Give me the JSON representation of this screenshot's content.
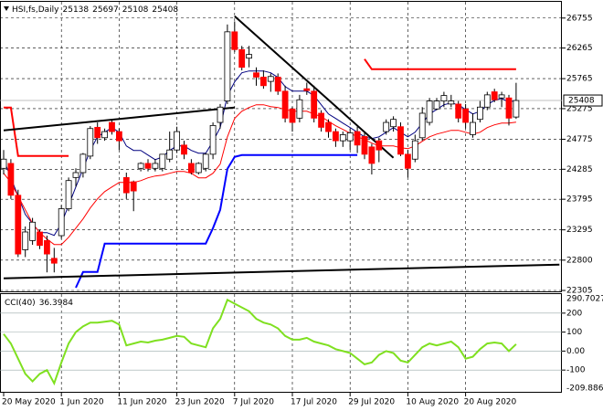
{
  "chart_data": {
    "type": "candlestick",
    "title": "HSI,fs,Daily",
    "categories": [
      "20 May 2020",
      null,
      null,
      null,
      null,
      null,
      null,
      null,
      "1 Jun 2020",
      null,
      null,
      null,
      null,
      null,
      null,
      null,
      "11 Jun 2020",
      null,
      null,
      null,
      null,
      null,
      null,
      null,
      "23 Jun 2020",
      null,
      null,
      null,
      null,
      null,
      null,
      null,
      "7 Jul 2020",
      null,
      null,
      null,
      null,
      null,
      null,
      null,
      "17 Jul 2020",
      null,
      null,
      null,
      null,
      null,
      null,
      null,
      "29 Jul 2020",
      null,
      null,
      null,
      null,
      null,
      null,
      null,
      "10 Aug 2020",
      null,
      null,
      null,
      null,
      null,
      null,
      null,
      "20 Aug 2020",
      null,
      null,
      null,
      null,
      null,
      null,
      null
    ],
    "candles": [
      [
        24300,
        24600,
        24200,
        24450
      ],
      [
        24380,
        24450,
        23800,
        23860
      ],
      [
        23860,
        23950,
        22850,
        22900
      ],
      [
        22970,
        23350,
        22850,
        23260
      ],
      [
        23120,
        23490,
        23050,
        23420
      ],
      [
        23260,
        23300,
        22980,
        23040
      ],
      [
        23120,
        23200,
        22600,
        22900
      ],
      [
        22830,
        23000,
        22600,
        22750
      ],
      [
        23200,
        23700,
        23150,
        23640
      ],
      [
        23640,
        24150,
        23600,
        24100
      ],
      [
        24150,
        24300,
        24000,
        24230
      ],
      [
        24230,
        24550,
        24150,
        24530
      ],
      [
        24500,
        24990,
        24450,
        24950
      ],
      [
        24970,
        25050,
        24700,
        24800
      ],
      [
        24800,
        24950,
        24750,
        24900
      ],
      [
        25050,
        25100,
        24850,
        24900
      ],
      [
        24900,
        24950,
        24600,
        24750
      ],
      [
        24150,
        24230,
        23800,
        23900
      ],
      [
        24080,
        24100,
        23600,
        23930
      ],
      [
        24300,
        24400,
        24250,
        24380
      ],
      [
        24380,
        24450,
        24250,
        24300
      ],
      [
        24300,
        24450,
        24250,
        24380
      ],
      [
        24300,
        24500,
        24250,
        24530
      ],
      [
        24450,
        24900,
        24400,
        24600
      ],
      [
        24600,
        24980,
        24550,
        24900
      ],
      [
        24680,
        24750,
        24450,
        24530
      ],
      [
        24380,
        24450,
        24200,
        24230
      ],
      [
        24230,
        24400,
        24200,
        24380
      ],
      [
        24300,
        24550,
        24250,
        24530
      ],
      [
        24530,
        25050,
        24450,
        25000
      ],
      [
        25050,
        25350,
        24950,
        25300
      ],
      [
        25400,
        26650,
        25350,
        26530
      ],
      [
        26530,
        26700,
        26200,
        26240
      ],
      [
        26240,
        26300,
        25900,
        25950
      ],
      [
        26100,
        26300,
        25950,
        26160
      ],
      [
        25860,
        25950,
        25650,
        25790
      ],
      [
        25790,
        25900,
        25600,
        25650
      ],
      [
        25720,
        25850,
        25550,
        25800
      ],
      [
        25790,
        25850,
        25500,
        25560
      ],
      [
        25560,
        25650,
        25050,
        25120
      ],
      [
        25270,
        25300,
        24900,
        25050
      ],
      [
        25120,
        25500,
        25050,
        25420
      ],
      [
        25600,
        25700,
        25500,
        25570
      ],
      [
        25560,
        25650,
        25050,
        25120
      ],
      [
        25200,
        25250,
        24900,
        24970
      ],
      [
        25050,
        25100,
        24800,
        24900
      ],
      [
        24900,
        24950,
        24650,
        24750
      ],
      [
        24750,
        24900,
        24650,
        24850
      ],
      [
        24750,
        24950,
        24600,
        24880
      ],
      [
        24900,
        24980,
        24550,
        24680
      ],
      [
        24820,
        24900,
        24450,
        24530
      ],
      [
        24650,
        24700,
        24200,
        24380
      ],
      [
        24750,
        24800,
        24400,
        24600
      ],
      [
        24900,
        25100,
        24850,
        25050
      ],
      [
        24980,
        25150,
        24900,
        25100
      ],
      [
        24980,
        25050,
        24500,
        24530
      ],
      [
        24530,
        24600,
        24150,
        24300
      ],
      [
        24450,
        24850,
        24400,
        24750
      ],
      [
        24800,
        25300,
        24750,
        25200
      ],
      [
        25050,
        25450,
        25000,
        25400
      ],
      [
        25270,
        25450,
        25250,
        25400
      ],
      [
        25400,
        25550,
        25300,
        25490
      ],
      [
        25350,
        25500,
        25300,
        25400
      ],
      [
        25350,
        25400,
        25050,
        25120
      ],
      [
        25270,
        25350,
        24950,
        25050
      ],
      [
        24850,
        25200,
        24800,
        25050
      ],
      [
        25100,
        25400,
        25050,
        25300
      ],
      [
        25300,
        25550,
        25250,
        25500
      ],
      [
        25550,
        25600,
        25380,
        25420
      ],
      [
        25450,
        25550,
        25300,
        25500
      ],
      [
        25450,
        25500,
        25000,
        25120
      ],
      [
        25138,
        25697,
        25108,
        25408
      ]
    ],
    "up_color": "#ffffff",
    "up_outline": "#000000",
    "down_color": "#ff0000",
    "ylim": [
      22305,
      27020
    ],
    "yticks": [
      26755,
      26265,
      25765,
      25275,
      24775,
      24285,
      23795,
      23295,
      22800,
      22305
    ],
    "grid": true,
    "indicators": [
      {
        "color": "#000080",
        "width": 1,
        "values": [
          24442,
          24144,
          23846,
          23547,
          23398,
          23249,
          23249,
          23204,
          23398,
          23696,
          23995,
          24293,
          24592,
          24815,
          24890,
          24965,
          24890,
          24666,
          24592,
          24592,
          24517,
          24442,
          24487,
          24592,
          24666,
          24666,
          24592,
          24547,
          24547,
          24741,
          24965,
          25487,
          25711,
          25860,
          25890,
          25890,
          25890,
          25860,
          25785,
          25636,
          25561,
          25561,
          25561,
          25487,
          25338,
          25188,
          25114,
          25039,
          24965,
          24890,
          24815,
          24786,
          24815,
          24890,
          24965,
          24890,
          24815,
          24890,
          25039,
          25188,
          25263,
          25338,
          25367,
          25338,
          25263,
          25188,
          25233,
          25338,
          25412,
          25442,
          25382,
          25412
        ]
      },
      {
        "color": "#ff0000",
        "width": 1,
        "values": [
          24219,
          24069,
          23846,
          23622,
          23398,
          23249,
          23144,
          23055,
          23055,
          23174,
          23323,
          23473,
          23652,
          23801,
          23920,
          23995,
          24069,
          24069,
          24069,
          24099,
          24144,
          24174,
          24189,
          24219,
          24248,
          24248,
          24219,
          24144,
          24144,
          24219,
          24368,
          24815,
          25114,
          25233,
          25293,
          25338,
          25338,
          25308,
          25293,
          25263,
          25233,
          25233,
          25233,
          25188,
          25144,
          25069,
          24995,
          24935,
          24875,
          24815,
          24771,
          24711,
          24666,
          24666,
          24666,
          24636,
          24621,
          24666,
          24741,
          24815,
          24860,
          24890,
          24920,
          24920,
          24890,
          24860,
          24890,
          24965,
          25010,
          25039,
          25039,
          25054
        ]
      },
      {
        "color": "#0000ff",
        "width": 2,
        "values": [
          null,
          null,
          null,
          null,
          null,
          null,
          null,
          null,
          null,
          null,
          22350,
          22607,
          22607,
          22607,
          23070,
          23070,
          23070,
          23070,
          23070,
          23070,
          23070,
          23070,
          23070,
          23070,
          23070,
          23070,
          23070,
          23070,
          23070,
          23323,
          23622,
          24293,
          24487,
          24517,
          24517,
          24517,
          24517,
          24517,
          24517,
          24517,
          24517,
          24517,
          24517,
          24517,
          24517,
          24517,
          24517,
          24517,
          24517,
          24517,
          null,
          null,
          null,
          null,
          null,
          null,
          null,
          null,
          null,
          null,
          null,
          null,
          null,
          null,
          null,
          null,
          null,
          null,
          null,
          null,
          null,
          null
        ]
      },
      {
        "color": "#ff0000",
        "width": 2,
        "values": [
          25293,
          25293,
          24502,
          24502,
          24502,
          24502,
          24502,
          24502,
          24502,
          24502,
          null,
          null,
          null,
          null,
          null,
          null,
          null,
          null,
          null,
          null,
          null,
          null,
          null,
          null,
          null,
          null,
          null,
          null,
          null,
          null,
          null,
          null,
          null,
          null,
          null,
          null,
          null,
          null,
          null,
          null,
          null,
          null,
          null,
          null,
          null,
          null,
          null,
          null,
          null,
          null,
          26084,
          25919,
          25919,
          25919,
          25919,
          25919,
          25919,
          25919,
          25919,
          25919,
          25919,
          25919,
          25919,
          25919,
          25919,
          25919,
          25919,
          25919,
          25919,
          25919,
          25919,
          25919
        ]
      }
    ],
    "trendlines": [
      {
        "color": "#000000",
        "from": [
          0,
          24920
        ],
        "to": [
          32,
          25293
        ]
      },
      {
        "color": "#000000",
        "from": [
          32,
          26785
        ],
        "to": [
          54,
          24472
        ]
      },
      {
        "color": "#000000",
        "from": [
          0,
          22503
        ],
        "to": [
          77,
          22727
        ]
      }
    ],
    "cci": {
      "title": "CCI(40)",
      "color": "#7fe020",
      "values": [
        90,
        40,
        -40,
        -120,
        -160,
        -120,
        -100,
        -170,
        -60,
        40,
        100,
        130,
        150,
        150,
        155,
        160,
        140,
        30,
        40,
        50,
        45,
        55,
        60,
        70,
        80,
        75,
        40,
        30,
        20,
        120,
        170,
        270,
        250,
        230,
        210,
        170,
        150,
        140,
        120,
        80,
        60,
        60,
        70,
        50,
        40,
        30,
        10,
        0,
        -10,
        -40,
        -70,
        -60,
        -20,
        0,
        -10,
        -50,
        -60,
        -20,
        20,
        40,
        30,
        40,
        50,
        20,
        -40,
        -30,
        10,
        40,
        45,
        40,
        0,
        36.3984
      ],
      "ylim": [
        -209.886,
        290.7027
      ],
      "yticks": [
        200,
        100,
        {
          "value": 0,
          "label": "0.00"
        },
        -100
      ]
    }
  }
}
